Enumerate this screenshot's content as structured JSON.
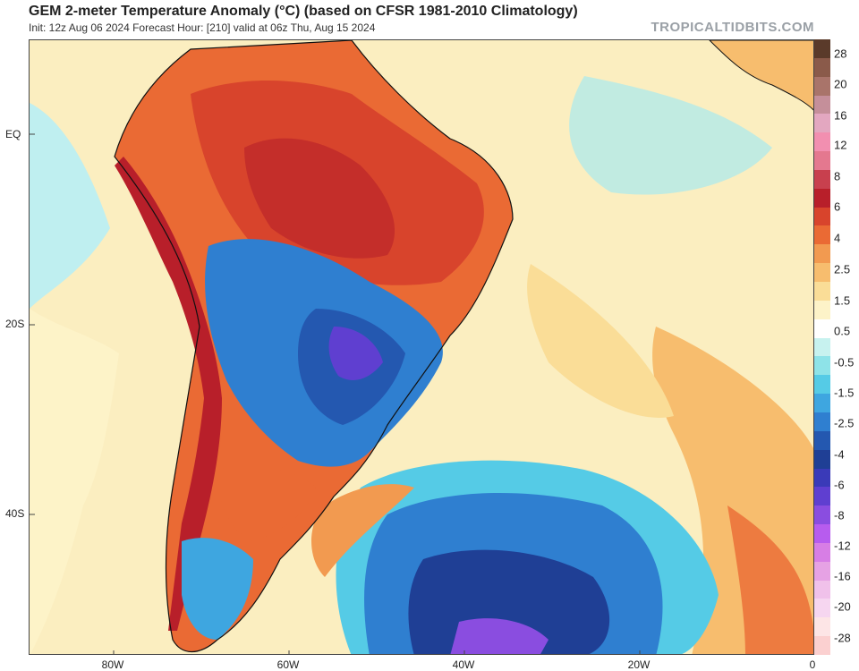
{
  "header": {
    "title": "GEM 2-meter Temperature Anomaly (°C) (based on CFSR 1981-2010 Climatology)",
    "subtitle": "Init: 12z Aug 06 2024   Forecast Hour: [210]   valid at 06z Thu, Aug 15 2024",
    "watermark": "TROPICALTIDBITS.COM"
  },
  "map": {
    "region": "South America and South Atlantic",
    "lat_labels": [
      "EQ",
      "20S",
      "40S"
    ],
    "lon_labels": [
      "80W",
      "60W",
      "40W",
      "20W",
      "0"
    ]
  },
  "colorbar": {
    "labels": [
      "28",
      "20",
      "16",
      "12",
      "8",
      "6",
      "4",
      "2.5",
      "1.5",
      "0.5",
      "-0.5",
      "-1.5",
      "-2.5",
      "-4",
      "-6",
      "-8",
      "-12",
      "-16",
      "-20",
      "-28"
    ],
    "colors": [
      "#5a3a2a",
      "#8a5a4a",
      "#a9746a",
      "#c58f9a",
      "#e3a7c0",
      "#f28fb0",
      "#e4788f",
      "#c8404e",
      "#b81f2a",
      "#d8442c",
      "#ea6a34",
      "#f29a50",
      "#f7bd6e",
      "#fadd97",
      "#fdf3c8",
      "#ffffff",
      "#c7f2ef",
      "#8ee3e8",
      "#55cbe6",
      "#3ea6e0",
      "#2f7fd0",
      "#2458b0",
      "#1f3f95",
      "#3a3ab8",
      "#5f3fd0",
      "#8a4de0",
      "#b75cee",
      "#d77ee5",
      "#e6a2e4",
      "#f0c1ea",
      "#f6d6f0",
      "#fde5e6",
      "#fbd0d0"
    ]
  }
}
